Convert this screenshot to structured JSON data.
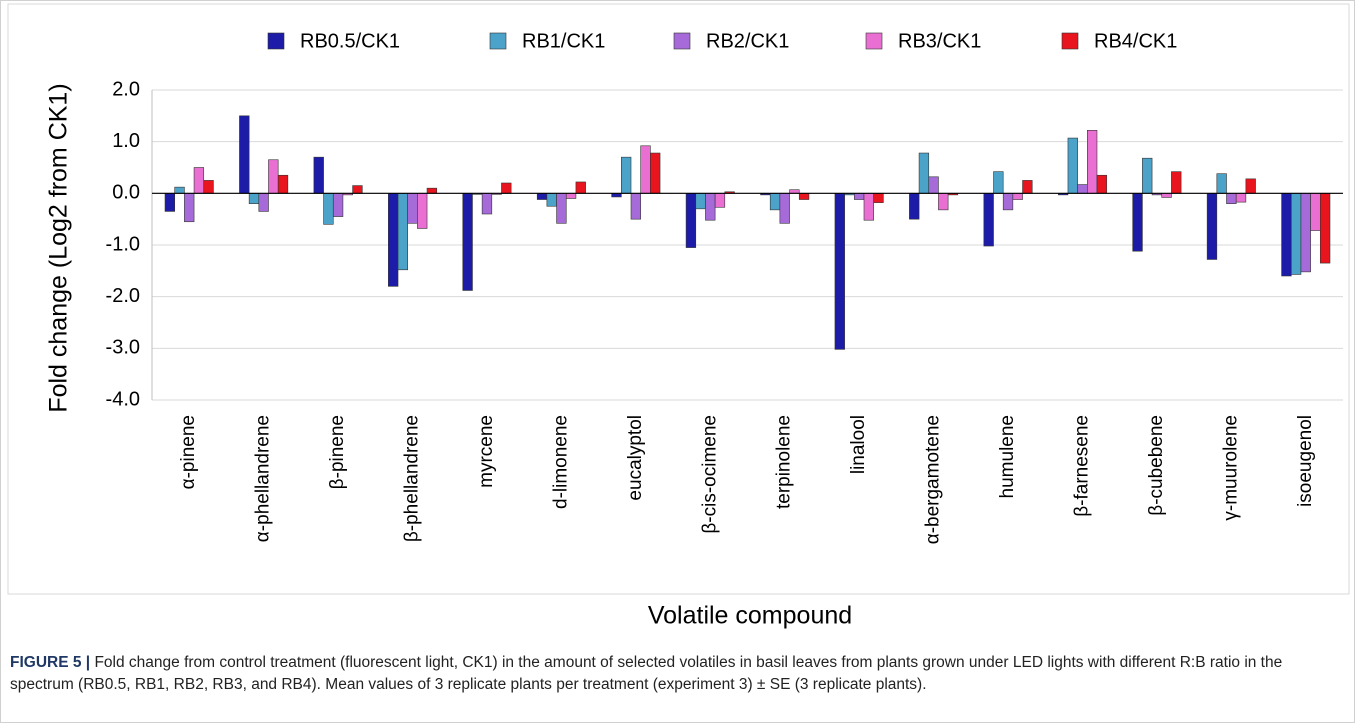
{
  "chart_data": {
    "type": "bar",
    "y_label": "Fold change (Log2 from CK1)",
    "x_label": "Volatile compound",
    "categories": [
      "α-pinene",
      "α-phellandrene",
      "β-pinene",
      "β-phellandrene",
      "myrcene",
      "d-limonene",
      "eucalyptol",
      "β-cis-ocimene",
      "terpinolene",
      "linalool",
      "α-bergamotene",
      "humulene",
      "β-farnesene",
      "β-cubebene",
      "γ-muurolene",
      "isoeugenol"
    ],
    "series": [
      {
        "name": "RB0.5/CK1",
        "color": "#1c1ca8",
        "values": [
          -0.35,
          1.5,
          0.7,
          -1.8,
          -1.88,
          -0.12,
          -0.07,
          -1.05,
          -0.03,
          -3.02,
          -0.5,
          -1.02,
          -0.03,
          -1.12,
          -1.28,
          -1.6
        ]
      },
      {
        "name": "RB1/CK1",
        "color": "#4ba3c9",
        "values": [
          0.12,
          -0.2,
          -0.6,
          -1.48,
          -0.02,
          -0.25,
          0.7,
          -0.3,
          -0.32,
          -0.03,
          0.78,
          0.42,
          1.07,
          0.68,
          0.38,
          -1.57
        ]
      },
      {
        "name": "RB2/CK1",
        "color": "#a66bd9",
        "values": [
          -0.55,
          -0.35,
          -0.45,
          -0.58,
          -0.4,
          -0.58,
          -0.5,
          -0.52,
          -0.58,
          -0.12,
          0.32,
          -0.32,
          0.17,
          -0.03,
          -0.2,
          -1.52
        ]
      },
      {
        "name": "RB3/CK1",
        "color": "#e970d2",
        "values": [
          0.5,
          0.65,
          -0.03,
          -0.68,
          -0.02,
          -0.1,
          0.92,
          -0.27,
          0.07,
          -0.52,
          -0.32,
          -0.12,
          1.22,
          -0.08,
          -0.17,
          -0.72
        ]
      },
      {
        "name": "RB4/CK1",
        "color": "#e8141e",
        "values": [
          0.25,
          0.35,
          0.15,
          0.1,
          0.2,
          0.22,
          0.78,
          0.03,
          -0.12,
          -0.18,
          -0.03,
          0.25,
          0.35,
          0.42,
          0.28,
          -1.35
        ]
      }
    ],
    "ylim": [
      -4,
      2
    ],
    "yticks": [
      {
        "value": -4,
        "label": "-4.0"
      },
      {
        "value": -3,
        "label": "-3.0"
      },
      {
        "value": -2,
        "label": "-2.0"
      },
      {
        "value": -1,
        "label": "-1.0"
      },
      {
        "value": 0,
        "label": "0.0"
      },
      {
        "value": 1,
        "label": "1.0"
      },
      {
        "value": 2,
        "label": "2.0"
      }
    ],
    "grid": true,
    "caption_label": "FIGURE 5 |",
    "caption": "Fold change from control treatment (fluorescent light, CK1) in the amount of selected volatiles in basil leaves from plants grown under LED lights with different R:B ratio in the spectrum (RB0.5, RB1, RB2, RB3, and RB4). Mean values of 3 replicate plants per treatment (experiment 3) ± SE (3 replicate plants)."
  }
}
